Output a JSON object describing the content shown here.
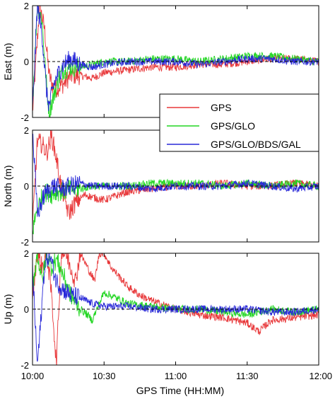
{
  "chart_data": {
    "type": "line",
    "shared_xlabel": "GPS Time (HH:MM)",
    "xlim": [
      "10:00",
      "12:00"
    ],
    "x_ticks": [
      "10:00",
      "10:30",
      "11:00",
      "11:30",
      "12:00"
    ],
    "legend": {
      "placement": "center-right",
      "entries": [
        {
          "name": "GPS",
          "color": "#e8383a"
        },
        {
          "name": "GPS/GLO",
          "color": "#22d622"
        },
        {
          "name": "GPS/GLO/BDS/GAL",
          "color": "#2828d8"
        }
      ]
    },
    "zero_reference_line": true,
    "panels": [
      {
        "ylabel": "East (m)",
        "ylim": [
          -2,
          2
        ],
        "y_ticks": [
          "2",
          "0",
          "-2"
        ],
        "series": [
          {
            "name": "GPS",
            "color": "#e8383a",
            "x": [
              "10:00",
              "10:03",
              "10:05",
              "10:07",
              "10:09",
              "10:11",
              "10:13",
              "10:16",
              "10:20",
              "10:25",
              "10:30",
              "10:40",
              "10:50",
              "11:00",
              "11:10",
              "11:20",
              "11:30",
              "11:40",
              "11:50",
              "12:00"
            ],
            "y": [
              -1.8,
              2.0,
              1.2,
              -0.5,
              -1.0,
              -0.9,
              -0.8,
              -0.5,
              -0.5,
              -0.6,
              -0.4,
              -0.3,
              -0.2,
              -0.2,
              -0.1,
              -0.1,
              0.0,
              0.1,
              0.1,
              0.0
            ]
          },
          {
            "name": "GPS/GLO",
            "color": "#22d622",
            "x": [
              "10:00",
              "10:02",
              "10:04",
              "10:06",
              "10:07",
              "10:09",
              "10:11",
              "10:13",
              "10:16",
              "10:20",
              "10:25",
              "10:30",
              "10:40",
              "10:50",
              "11:00",
              "11:10",
              "11:20",
              "11:30",
              "11:40",
              "11:50",
              "12:00"
            ],
            "y": [
              -1.5,
              2.0,
              1.5,
              -1.0,
              -1.8,
              -1.2,
              -0.6,
              -0.3,
              -0.2,
              -0.2,
              -0.1,
              0.0,
              0.0,
              0.1,
              0.1,
              0.0,
              0.1,
              0.2,
              0.2,
              0.1,
              0.0
            ]
          },
          {
            "name": "GPS/GLO/BDS/GAL",
            "color": "#2828d8",
            "x": [
              "10:00",
              "10:02",
              "10:04",
              "10:06",
              "10:07",
              "10:09",
              "10:11",
              "10:13",
              "10:16",
              "10:20",
              "10:25",
              "10:30",
              "10:40",
              "10:50",
              "11:00",
              "11:10",
              "11:20",
              "11:30",
              "11:40",
              "11:50",
              "12:00"
            ],
            "y": [
              -1.8,
              2.0,
              1.0,
              -1.2,
              -1.6,
              -0.8,
              -0.4,
              -0.1,
              0.1,
              -0.1,
              -0.2,
              -0.1,
              0.0,
              0.0,
              0.0,
              -0.1,
              0.0,
              0.1,
              0.1,
              0.0,
              0.0
            ]
          }
        ]
      },
      {
        "ylabel": "North (m)",
        "ylim": [
          -2,
          2
        ],
        "y_ticks": [
          "2",
          "0",
          "-2"
        ],
        "series": [
          {
            "name": "GPS",
            "color": "#e8383a",
            "x": [
              "10:00",
              "10:02",
              "10:04",
              "10:06",
              "10:08",
              "10:10",
              "10:12",
              "10:14",
              "10:15",
              "10:18",
              "10:22",
              "10:25",
              "10:30",
              "10:40",
              "10:50",
              "11:00",
              "11:10",
              "11:20",
              "11:30",
              "11:40",
              "11:50",
              "12:00"
            ],
            "y": [
              -1.5,
              1.6,
              1.5,
              1.2,
              1.8,
              1.0,
              0.0,
              -0.6,
              -1.0,
              -0.6,
              -0.3,
              -0.4,
              -0.5,
              -0.2,
              -0.1,
              0.0,
              0.0,
              0.1,
              0.0,
              0.0,
              0.1,
              0.0
            ]
          },
          {
            "name": "GPS/GLO",
            "color": "#22d622",
            "x": [
              "10:00",
              "10:02",
              "10:04",
              "10:06",
              "10:08",
              "10:10",
              "10:13",
              "10:16",
              "10:20",
              "10:25",
              "10:30",
              "10:40",
              "10:50",
              "11:00",
              "11:10",
              "11:20",
              "11:30",
              "11:40",
              "11:50",
              "12:00"
            ],
            "y": [
              -1.6,
              -0.8,
              -0.4,
              -0.2,
              -0.3,
              -0.2,
              -0.2,
              -0.1,
              -0.1,
              0.0,
              0.0,
              0.0,
              0.1,
              0.1,
              0.1,
              0.0,
              0.1,
              0.0,
              0.1,
              0.0
            ]
          },
          {
            "name": "GPS/GLO/BDS/GAL",
            "color": "#2828d8",
            "x": [
              "10:00",
              "10:02",
              "10:03",
              "10:05",
              "10:07",
              "10:09",
              "10:12",
              "10:16",
              "10:20",
              "10:25",
              "10:30",
              "10:40",
              "10:50",
              "11:00",
              "11:10",
              "11:20",
              "11:30",
              "11:40",
              "11:50",
              "12:00"
            ],
            "y": [
              2.0,
              -1.0,
              -0.8,
              -0.3,
              -0.1,
              0.0,
              -0.1,
              0.0,
              0.1,
              0.0,
              0.0,
              0.0,
              -0.1,
              0.0,
              0.0,
              0.0,
              0.1,
              0.0,
              -0.1,
              0.0
            ]
          }
        ]
      },
      {
        "ylabel": "Up (m)",
        "ylim": [
          -2,
          2
        ],
        "y_ticks": [
          "2",
          "0",
          "-2"
        ],
        "series": [
          {
            "name": "GPS",
            "color": "#e8383a",
            "x": [
              "10:00",
              "10:02",
              "10:04",
              "10:06",
              "10:08",
              "10:10",
              "10:12",
              "10:14",
              "10:16",
              "10:18",
              "10:20",
              "10:23",
              "10:26",
              "10:28",
              "10:30",
              "10:33",
              "10:36",
              "10:40",
              "10:45",
              "10:50",
              "11:00",
              "11:10",
              "11:20",
              "11:30",
              "11:35",
              "11:40",
              "11:50",
              "12:00"
            ],
            "y": [
              0.5,
              2.0,
              1.5,
              2.0,
              0.5,
              -2.0,
              2.0,
              2.0,
              1.5,
              1.0,
              2.0,
              1.5,
              1.0,
              2.0,
              2.0,
              1.5,
              1.2,
              0.8,
              0.5,
              0.3,
              0.0,
              -0.2,
              -0.3,
              -0.5,
              -0.8,
              -0.4,
              -0.3,
              -0.2
            ]
          },
          {
            "name": "GPS/GLO",
            "color": "#22d622",
            "x": [
              "10:00",
              "10:02",
              "10:04",
              "10:06",
              "10:08",
              "10:10",
              "10:13",
              "10:16",
              "10:20",
              "10:23",
              "10:25",
              "10:28",
              "10:30",
              "10:35",
              "10:40",
              "10:50",
              "11:00",
              "11:10",
              "11:20",
              "11:30",
              "11:40",
              "11:50",
              "12:00"
            ],
            "y": [
              0.8,
              2.0,
              1.0,
              2.0,
              1.5,
              1.8,
              1.2,
              0.5,
              0.0,
              -0.2,
              -0.4,
              0.2,
              0.6,
              0.4,
              0.2,
              0.1,
              0.0,
              0.0,
              -0.1,
              -0.2,
              0.0,
              -0.1,
              0.0
            ]
          },
          {
            "name": "GPS/GLO/BDS/GAL",
            "color": "#2828d8",
            "x": [
              "10:00",
              "10:02",
              "10:03",
              "10:05",
              "10:07",
              "10:10",
              "10:13",
              "10:16",
              "10:20",
              "10:25",
              "10:30",
              "10:40",
              "10:50",
              "11:00",
              "11:10",
              "11:20",
              "11:30",
              "11:40",
              "11:50",
              "12:00"
            ],
            "y": [
              1.5,
              -2.0,
              -1.0,
              1.5,
              2.0,
              1.0,
              0.7,
              0.5,
              0.4,
              0.2,
              0.1,
              0.1,
              0.0,
              0.0,
              0.0,
              0.0,
              0.0,
              -0.1,
              -0.1,
              0.0
            ]
          }
        ]
      }
    ]
  }
}
